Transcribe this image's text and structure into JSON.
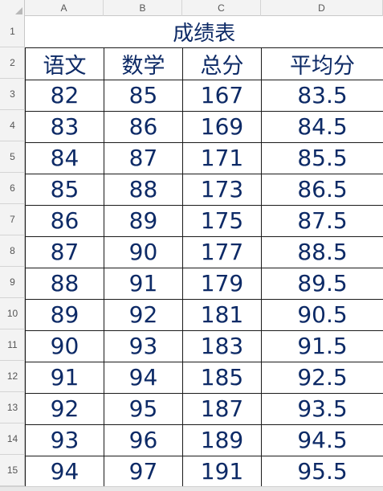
{
  "columns": [
    "A",
    "B",
    "C",
    "D"
  ],
  "rows": [
    "1",
    "2",
    "3",
    "4",
    "5",
    "6",
    "7",
    "8",
    "9",
    "10",
    "11",
    "12",
    "13",
    "14",
    "15"
  ],
  "sheet": {
    "title": "成绩表",
    "headers": [
      "语文",
      "数学",
      "总分",
      "平均分"
    ],
    "records": [
      [
        "82",
        "85",
        "167",
        "83.5"
      ],
      [
        "83",
        "86",
        "169",
        "84.5"
      ],
      [
        "84",
        "87",
        "171",
        "85.5"
      ],
      [
        "85",
        "88",
        "173",
        "86.5"
      ],
      [
        "86",
        "89",
        "175",
        "87.5"
      ],
      [
        "87",
        "90",
        "177",
        "88.5"
      ],
      [
        "88",
        "91",
        "179",
        "89.5"
      ],
      [
        "89",
        "92",
        "181",
        "90.5"
      ],
      [
        "90",
        "93",
        "183",
        "91.5"
      ],
      [
        "91",
        "94",
        "185",
        "92.5"
      ],
      [
        "92",
        "95",
        "187",
        "93.5"
      ],
      [
        "93",
        "96",
        "189",
        "94.5"
      ],
      [
        "94",
        "97",
        "191",
        "95.5"
      ]
    ]
  },
  "colors": {
    "cell_text": "#0d2a66",
    "border": "#1a1a1a",
    "header_bg": "#f3f3f3"
  }
}
